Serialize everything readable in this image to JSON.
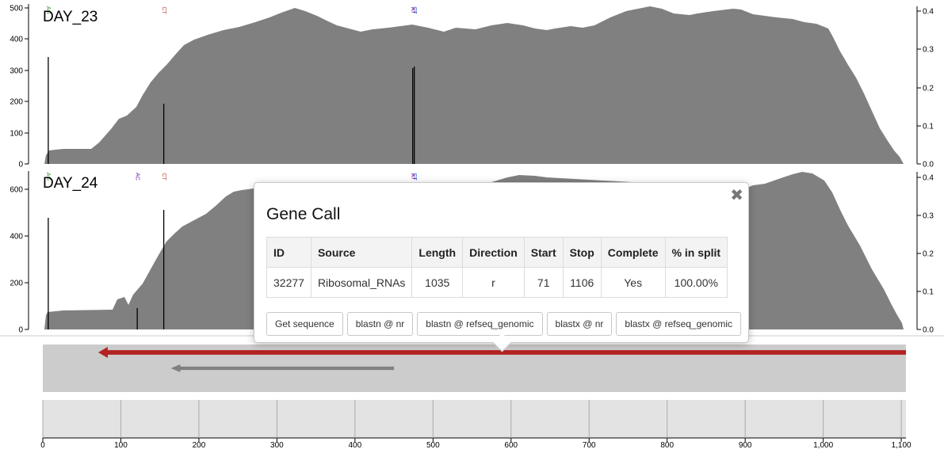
{
  "samples": [
    {
      "name": "DAY_23",
      "y_ticks_left": [
        "0",
        "100",
        "200",
        "300",
        "400",
        "500"
      ],
      "y_ticks_right": [
        "0.0",
        "0.1",
        "0.2",
        "0.3",
        "0.4"
      ],
      "snv_markers": [
        {
          "label": "AG",
          "color": "#2e8b2e",
          "pos": 7
        },
        {
          "label": "CT",
          "color": "#c0392b",
          "pos": 155
        },
        {
          "label": "AT",
          "color": "#6a1b9a",
          "pos": 474
        },
        {
          "label": "CT",
          "color": "#1a3fd1",
          "pos": 476
        }
      ]
    },
    {
      "name": "DAY_24",
      "y_ticks_left": [
        "0",
        "200",
        "400",
        "600"
      ],
      "y_ticks_right": [
        "0.0",
        "0.1",
        "0.2",
        "0.3",
        "0.4"
      ],
      "snv_markers": [
        {
          "label": "AG",
          "color": "#2e8b2e",
          "pos": 7
        },
        {
          "label": "AC",
          "color": "#6a1b9a",
          "pos": 121
        },
        {
          "label": "CT",
          "color": "#c0392b",
          "pos": 155
        },
        {
          "label": "AT",
          "color": "#6a1b9a",
          "pos": 474
        },
        {
          "label": "CT",
          "color": "#1a3fd1",
          "pos": 476
        }
      ]
    }
  ],
  "coverage_color": "#808080",
  "genes": [
    {
      "start": 71,
      "stop": 1106,
      "direction": "r",
      "color": "#b22222"
    },
    {
      "start": 164,
      "stop": 450,
      "direction": "r",
      "color": "#808080"
    }
  ],
  "ruler": {
    "ticks": [
      "0",
      "100",
      "200",
      "300",
      "400",
      "500",
      "600",
      "700",
      "800",
      "900",
      "1,000",
      "1,100"
    ]
  },
  "popover": {
    "title": "Gene Call",
    "close_icon": "✖",
    "columns": [
      "ID",
      "Source",
      "Length",
      "Direction",
      "Start",
      "Stop",
      "Complete",
      "% in split"
    ],
    "row": [
      "32277",
      "Ribosomal_RNAs",
      "1035",
      "r",
      "71",
      "1106",
      "Yes",
      "100.00%"
    ],
    "buttons": [
      "Get sequence",
      "blastn @ nr",
      "blastn @ refseq_genomic",
      "blastx @ nr",
      "blastx @ refseq_genomic"
    ]
  }
}
